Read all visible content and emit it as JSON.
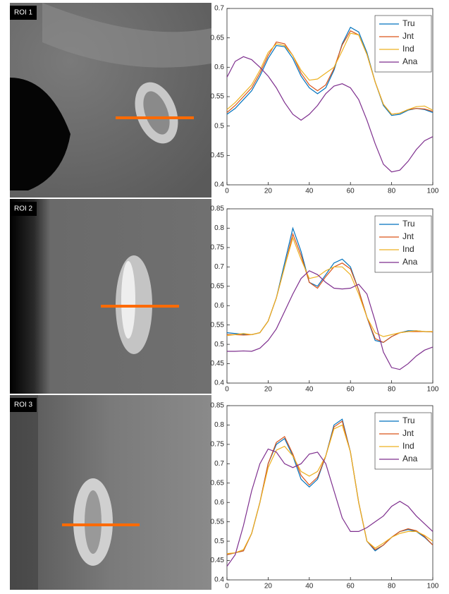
{
  "roi_labels": [
    "ROI 1",
    "ROI 2",
    "ROI 3"
  ],
  "chart_data": [
    {
      "type": "line",
      "x": [
        0,
        4,
        8,
        12,
        16,
        20,
        24,
        28,
        32,
        36,
        40,
        44,
        48,
        52,
        56,
        60,
        64,
        68,
        72,
        76,
        80,
        84,
        88,
        92,
        96,
        100
      ],
      "xlim": [
        0,
        100
      ],
      "xticks": [
        0,
        20,
        40,
        60,
        80,
        100
      ],
      "ylim": [
        0.4,
        0.7
      ],
      "yticks": [
        0.4,
        0.45,
        0.5,
        0.55,
        0.6,
        0.65,
        0.7
      ],
      "legend": "upper right",
      "series": [
        {
          "name": "Tru",
          "color": "#0072bd",
          "values": [
            0.52,
            0.53,
            0.545,
            0.56,
            0.585,
            0.615,
            0.637,
            0.635,
            0.615,
            0.585,
            0.565,
            0.555,
            0.565,
            0.595,
            0.64,
            0.668,
            0.66,
            0.625,
            0.575,
            0.535,
            0.518,
            0.52,
            0.527,
            0.53,
            0.528,
            0.523
          ]
        },
        {
          "name": "Jnt",
          "color": "#d95319",
          "values": [
            0.523,
            0.535,
            0.55,
            0.565,
            0.59,
            0.62,
            0.643,
            0.64,
            0.62,
            0.59,
            0.57,
            0.56,
            0.57,
            0.598,
            0.638,
            0.662,
            0.655,
            0.622,
            0.575,
            0.537,
            0.52,
            0.522,
            0.528,
            0.53,
            0.529,
            0.525
          ]
        },
        {
          "name": "Ind",
          "color": "#edb120",
          "values": [
            0.528,
            0.54,
            0.555,
            0.57,
            0.595,
            0.625,
            0.64,
            0.637,
            0.62,
            0.595,
            0.578,
            0.58,
            0.59,
            0.6,
            0.628,
            0.658,
            0.655,
            0.622,
            0.575,
            0.537,
            0.52,
            0.522,
            0.528,
            0.533,
            0.534,
            0.527
          ]
        },
        {
          "name": "Ana",
          "color": "#7e2f8e",
          "values": [
            0.583,
            0.61,
            0.618,
            0.613,
            0.6,
            0.585,
            0.565,
            0.54,
            0.52,
            0.51,
            0.52,
            0.535,
            0.555,
            0.568,
            0.572,
            0.565,
            0.545,
            0.51,
            0.47,
            0.435,
            0.422,
            0.425,
            0.44,
            0.46,
            0.475,
            0.482
          ]
        }
      ]
    },
    {
      "type": "line",
      "x": [
        0,
        4,
        8,
        12,
        16,
        20,
        24,
        28,
        32,
        36,
        40,
        44,
        48,
        52,
        56,
        60,
        64,
        68,
        72,
        76,
        80,
        84,
        88,
        92,
        96,
        100
      ],
      "xlim": [
        0,
        100
      ],
      "xticks": [
        0,
        20,
        40,
        60,
        80,
        100
      ],
      "ylim": [
        0.4,
        0.85
      ],
      "yticks": [
        0.4,
        0.45,
        0.5,
        0.55,
        0.6,
        0.65,
        0.7,
        0.75,
        0.8,
        0.85
      ],
      "legend": "upper right",
      "series": [
        {
          "name": "Tru",
          "color": "#0072bd",
          "values": [
            0.53,
            0.528,
            0.526,
            0.525,
            0.53,
            0.56,
            0.62,
            0.71,
            0.8,
            0.74,
            0.66,
            0.65,
            0.68,
            0.71,
            0.72,
            0.7,
            0.64,
            0.57,
            0.51,
            0.505,
            0.52,
            0.53,
            0.535,
            0.535,
            0.533,
            0.532
          ]
        },
        {
          "name": "Jnt",
          "color": "#d95319",
          "values": [
            0.525,
            0.525,
            0.524,
            0.525,
            0.53,
            0.56,
            0.62,
            0.7,
            0.785,
            0.73,
            0.66,
            0.645,
            0.675,
            0.7,
            0.71,
            0.695,
            0.64,
            0.57,
            0.515,
            0.505,
            0.52,
            0.53,
            0.533,
            0.533,
            0.533,
            0.532
          ]
        },
        {
          "name": "Ind",
          "color": "#edb120",
          "values": [
            0.523,
            0.525,
            0.528,
            0.525,
            0.53,
            0.56,
            0.62,
            0.7,
            0.775,
            0.72,
            0.67,
            0.675,
            0.69,
            0.7,
            0.7,
            0.68,
            0.63,
            0.57,
            0.53,
            0.52,
            0.525,
            0.53,
            0.533,
            0.535,
            0.533,
            0.533
          ]
        },
        {
          "name": "Ana",
          "color": "#7e2f8e",
          "values": [
            0.482,
            0.482,
            0.483,
            0.482,
            0.49,
            0.51,
            0.54,
            0.585,
            0.63,
            0.67,
            0.69,
            0.68,
            0.66,
            0.645,
            0.643,
            0.645,
            0.655,
            0.63,
            0.56,
            0.48,
            0.44,
            0.435,
            0.45,
            0.47,
            0.485,
            0.493
          ]
        }
      ]
    },
    {
      "type": "line",
      "x": [
        0,
        4,
        8,
        12,
        16,
        20,
        24,
        28,
        32,
        36,
        40,
        44,
        48,
        52,
        56,
        60,
        64,
        68,
        72,
        76,
        80,
        84,
        88,
        92,
        96,
        100
      ],
      "xlim": [
        0,
        100
      ],
      "xticks": [
        0,
        20,
        40,
        60,
        80,
        100
      ],
      "ylim": [
        0.4,
        0.85
      ],
      "yticks": [
        0.4,
        0.45,
        0.5,
        0.55,
        0.6,
        0.65,
        0.7,
        0.75,
        0.8,
        0.85
      ],
      "legend": "upper right",
      "series": [
        {
          "name": "Tru",
          "color": "#0072bd",
          "values": [
            0.465,
            0.47,
            0.475,
            0.52,
            0.6,
            0.7,
            0.75,
            0.765,
            0.72,
            0.66,
            0.64,
            0.66,
            0.72,
            0.8,
            0.815,
            0.73,
            0.6,
            0.5,
            0.475,
            0.49,
            0.51,
            0.525,
            0.53,
            0.525,
            0.51,
            0.49
          ]
        },
        {
          "name": "Jnt",
          "color": "#d95319",
          "values": [
            0.465,
            0.47,
            0.475,
            0.52,
            0.6,
            0.7,
            0.755,
            0.77,
            0.725,
            0.67,
            0.645,
            0.665,
            0.72,
            0.795,
            0.81,
            0.73,
            0.6,
            0.5,
            0.478,
            0.49,
            0.51,
            0.525,
            0.532,
            0.527,
            0.512,
            0.49
          ]
        },
        {
          "name": "Ind",
          "color": "#edb120",
          "values": [
            0.468,
            0.47,
            0.478,
            0.52,
            0.6,
            0.69,
            0.735,
            0.745,
            0.72,
            0.68,
            0.668,
            0.68,
            0.72,
            0.79,
            0.8,
            0.73,
            0.6,
            0.5,
            0.482,
            0.495,
            0.51,
            0.52,
            0.525,
            0.525,
            0.515,
            0.5
          ]
        },
        {
          "name": "Ana",
          "color": "#7e2f8e",
          "values": [
            0.435,
            0.465,
            0.54,
            0.63,
            0.7,
            0.738,
            0.73,
            0.7,
            0.69,
            0.7,
            0.725,
            0.73,
            0.7,
            0.63,
            0.56,
            0.525,
            0.525,
            0.535,
            0.55,
            0.565,
            0.59,
            0.603,
            0.59,
            0.565,
            0.545,
            0.525
          ]
        }
      ]
    }
  ]
}
